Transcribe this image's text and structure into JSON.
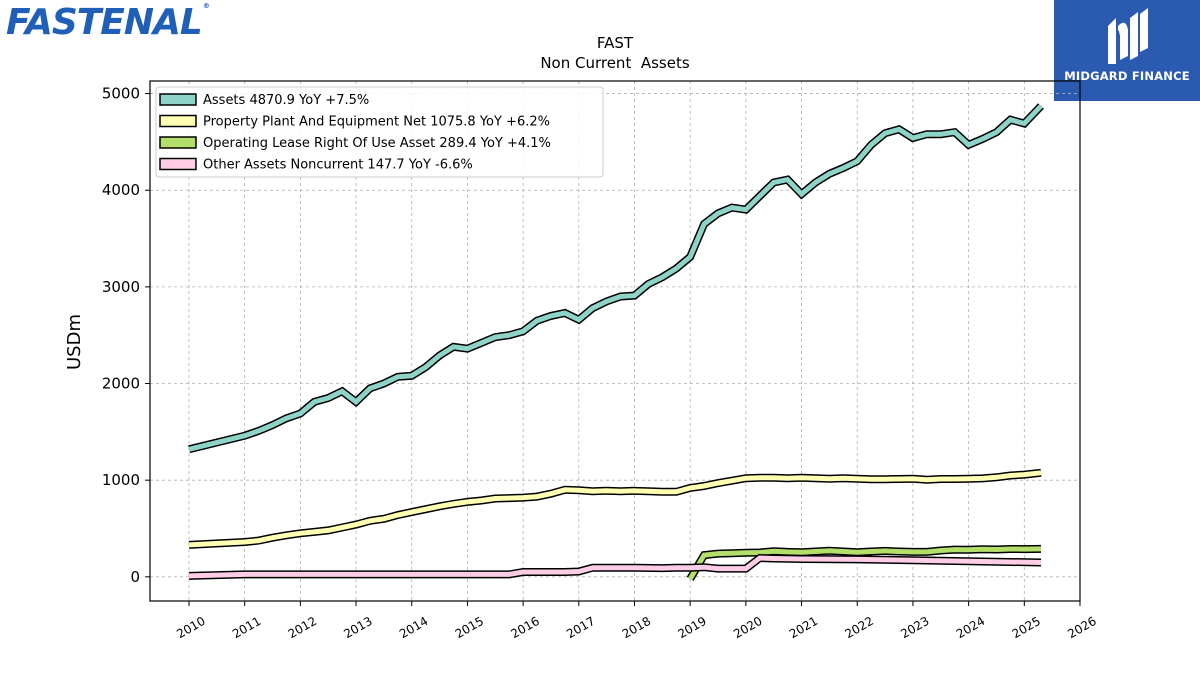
{
  "header": {
    "logo_text": "FASTENAL"
  },
  "sponsor": {
    "name": "MIDGARD FINANCE",
    "icon": "midgard-finance-logo-icon"
  },
  "chart_data": {
    "type": "line",
    "title": "FAST",
    "subtitle": "Non Current  Assets",
    "xlabel": "",
    "ylabel": "USDm",
    "xlim": [
      2009.3,
      2026
    ],
    "ylim": [
      -250,
      5130
    ],
    "xticks": [
      "2010",
      "2011",
      "2012",
      "2013",
      "2014",
      "2015",
      "2016",
      "2017",
      "2018",
      "2019",
      "2020",
      "2021",
      "2022",
      "2023",
      "2024",
      "2025",
      "2026"
    ],
    "yticks": [
      "0",
      "1000",
      "2000",
      "3000",
      "4000",
      "5000"
    ],
    "grid": true,
    "legend": "top-left",
    "series": [
      {
        "name": "Assets  4870.9 YoY +7.5%",
        "color": "#8dd3c7",
        "points": [
          [
            2010.0,
            1320
          ],
          [
            2011.0,
            1460
          ],
          [
            2011.25,
            1510
          ],
          [
            2011.5,
            1570
          ],
          [
            2011.75,
            1640
          ],
          [
            2012.0,
            1690
          ],
          [
            2012.25,
            1810
          ],
          [
            2012.5,
            1850
          ],
          [
            2012.75,
            1920
          ],
          [
            2013.0,
            1810
          ],
          [
            2013.25,
            1950
          ],
          [
            2013.5,
            2000
          ],
          [
            2013.75,
            2070
          ],
          [
            2014.0,
            2080
          ],
          [
            2014.25,
            2170
          ],
          [
            2014.5,
            2290
          ],
          [
            2014.75,
            2380
          ],
          [
            2015.0,
            2360
          ],
          [
            2015.25,
            2420
          ],
          [
            2015.5,
            2480
          ],
          [
            2015.75,
            2500
          ],
          [
            2016.0,
            2540
          ],
          [
            2016.25,
            2650
          ],
          [
            2016.5,
            2700
          ],
          [
            2016.75,
            2730
          ],
          [
            2017.0,
            2660
          ],
          [
            2017.25,
            2780
          ],
          [
            2017.5,
            2850
          ],
          [
            2017.75,
            2900
          ],
          [
            2018.0,
            2910
          ],
          [
            2018.25,
            3030
          ],
          [
            2018.5,
            3100
          ],
          [
            2018.75,
            3190
          ],
          [
            2019.0,
            3310
          ],
          [
            2019.25,
            3650
          ],
          [
            2019.5,
            3760
          ],
          [
            2019.75,
            3820
          ],
          [
            2020.0,
            3800
          ],
          [
            2020.25,
            3940
          ],
          [
            2020.5,
            4080
          ],
          [
            2020.75,
            4110
          ],
          [
            2021.0,
            3960
          ],
          [
            2021.25,
            4080
          ],
          [
            2021.5,
            4170
          ],
          [
            2021.75,
            4230
          ],
          [
            2022.0,
            4300
          ],
          [
            2022.25,
            4470
          ],
          [
            2022.5,
            4590
          ],
          [
            2022.75,
            4630
          ],
          [
            2023.0,
            4540
          ],
          [
            2023.25,
            4580
          ],
          [
            2023.5,
            4580
          ],
          [
            2023.75,
            4600
          ],
          [
            2024.0,
            4470
          ],
          [
            2024.25,
            4530
          ],
          [
            2024.5,
            4600
          ],
          [
            2024.75,
            4730
          ],
          [
            2025.0,
            4690
          ],
          [
            2025.3,
            4871
          ]
        ]
      },
      {
        "name": "Property Plant And Equipment Net  1075.8 YoY +6.2%",
        "color": "#ffffb3",
        "points": [
          [
            2010.0,
            330
          ],
          [
            2011.0,
            360
          ],
          [
            2011.25,
            375
          ],
          [
            2011.5,
            405
          ],
          [
            2011.75,
            430
          ],
          [
            2012.0,
            450
          ],
          [
            2012.25,
            465
          ],
          [
            2012.5,
            480
          ],
          [
            2012.75,
            510
          ],
          [
            2013.0,
            540
          ],
          [
            2013.25,
            580
          ],
          [
            2013.5,
            600
          ],
          [
            2013.75,
            640
          ],
          [
            2014.0,
            670
          ],
          [
            2014.25,
            700
          ],
          [
            2014.5,
            730
          ],
          [
            2014.75,
            755
          ],
          [
            2015.0,
            775
          ],
          [
            2015.25,
            790
          ],
          [
            2015.5,
            810
          ],
          [
            2015.75,
            815
          ],
          [
            2016.0,
            820
          ],
          [
            2016.25,
            830
          ],
          [
            2016.5,
            860
          ],
          [
            2016.75,
            900
          ],
          [
            2017.0,
            895
          ],
          [
            2017.25,
            885
          ],
          [
            2017.5,
            890
          ],
          [
            2017.75,
            885
          ],
          [
            2018.0,
            890
          ],
          [
            2018.25,
            885
          ],
          [
            2018.5,
            880
          ],
          [
            2018.75,
            880
          ],
          [
            2019.0,
            920
          ],
          [
            2019.25,
            940
          ],
          [
            2019.5,
            970
          ],
          [
            2019.75,
            995
          ],
          [
            2020.0,
            1020
          ],
          [
            2020.25,
            1025
          ],
          [
            2020.5,
            1025
          ],
          [
            2020.75,
            1020
          ],
          [
            2021.0,
            1025
          ],
          [
            2021.25,
            1020
          ],
          [
            2021.5,
            1015
          ],
          [
            2021.75,
            1020
          ],
          [
            2022.0,
            1015
          ],
          [
            2022.25,
            1010
          ],
          [
            2022.5,
            1010
          ],
          [
            2022.75,
            1012
          ],
          [
            2023.0,
            1015
          ],
          [
            2023.25,
            1005
          ],
          [
            2023.5,
            1012
          ],
          [
            2023.75,
            1012
          ],
          [
            2024.0,
            1015
          ],
          [
            2024.25,
            1018
          ],
          [
            2024.5,
            1030
          ],
          [
            2024.75,
            1048
          ],
          [
            2025.0,
            1058
          ],
          [
            2025.3,
            1076
          ]
        ]
      },
      {
        "name": "Operating Lease Right Of Use Asset  289.4 YoY +4.1%",
        "color": "#b3de69",
        "points": [
          [
            2019.0,
            -20
          ],
          [
            2019.25,
            225
          ],
          [
            2019.5,
            240
          ],
          [
            2019.75,
            245
          ],
          [
            2020.0,
            250
          ],
          [
            2020.25,
            252
          ],
          [
            2020.5,
            265
          ],
          [
            2020.75,
            258
          ],
          [
            2021.0,
            255
          ],
          [
            2021.25,
            262
          ],
          [
            2021.5,
            270
          ],
          [
            2021.75,
            262
          ],
          [
            2022.0,
            255
          ],
          [
            2022.25,
            262
          ],
          [
            2022.5,
            268
          ],
          [
            2022.75,
            262
          ],
          [
            2023.0,
            258
          ],
          [
            2023.25,
            258
          ],
          [
            2023.5,
            272
          ],
          [
            2023.75,
            282
          ],
          [
            2024.0,
            280
          ],
          [
            2024.25,
            285
          ],
          [
            2024.5,
            283
          ],
          [
            2024.75,
            288
          ],
          [
            2025.0,
            287
          ],
          [
            2025.3,
            289
          ]
        ]
      },
      {
        "name": "Other Assets Noncurrent  147.7 YoY -6.6%",
        "color": "#fccde5",
        "points": [
          [
            2010.0,
            10
          ],
          [
            2011.0,
            25
          ],
          [
            2012.0,
            25
          ],
          [
            2013.0,
            25
          ],
          [
            2014.0,
            25
          ],
          [
            2015.0,
            25
          ],
          [
            2015.75,
            25
          ],
          [
            2016.0,
            50
          ],
          [
            2016.25,
            50
          ],
          [
            2016.75,
            50
          ],
          [
            2017.0,
            55
          ],
          [
            2017.25,
            95
          ],
          [
            2017.75,
            95
          ],
          [
            2018.0,
            95
          ],
          [
            2018.5,
            90
          ],
          [
            2018.75,
            95
          ],
          [
            2019.0,
            95
          ],
          [
            2019.25,
            100
          ],
          [
            2019.5,
            85
          ],
          [
            2019.75,
            85
          ],
          [
            2020.0,
            85
          ],
          [
            2020.25,
            195
          ],
          [
            2020.5,
            190
          ],
          [
            2021.0,
            185
          ],
          [
            2022.0,
            180
          ],
          [
            2023.0,
            172
          ],
          [
            2024.0,
            162
          ],
          [
            2025.3,
            148
          ]
        ]
      }
    ]
  }
}
